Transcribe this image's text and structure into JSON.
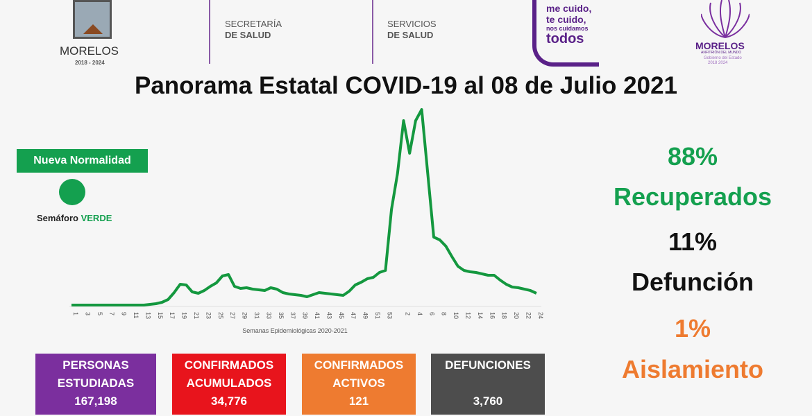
{
  "header": {
    "morelos": "MORELOS",
    "morelos_years": "2018 - 2024",
    "secretaria_1": "SECRETARÍA",
    "secretaria_2": "DE SALUD",
    "servicios_1": "SERVICIOS",
    "servicios_2": "DE SALUD",
    "slogan_1": "me cuido,",
    "slogan_2": "te cuido,",
    "slogan_3": "nos cuidamos",
    "slogan_4": "todos",
    "logo2_title": "MORELOS",
    "logo2_sub": "ANFITRIÓN DEL MUNDO",
    "logo2_gov": "Gobierno del Estado",
    "logo2_years": "2018 2024"
  },
  "title": "Panorama Estatal COVID-19 al 08 de Julio 2021",
  "semaforo": {
    "badge": "Nueva Normalidad",
    "label": "Semáforo",
    "status": "VERDE",
    "color": "#14a04f"
  },
  "stats": {
    "recuperados_pct": "88%",
    "recuperados": "Recuperados",
    "defuncion_pct": "11%",
    "defuncion": "Defunción",
    "aislamiento_pct": "1%",
    "aislamiento": "Aislamiento"
  },
  "boxes": [
    {
      "label1": "PERSONAS",
      "label2": "ESTUDIADAS",
      "value": "167,198",
      "color": "#7b2f9e"
    },
    {
      "label1": "CONFIRMADOS",
      "label2": "ACUMULADOS",
      "value": "34,776",
      "color": "#e8141c"
    },
    {
      "label1": "CONFIRMADOS",
      "label2": "ACTIVOS",
      "value": "121",
      "color": "#ee7b30"
    },
    {
      "label1": "DEFUNCIONES",
      "label2": "",
      "value": "3,760",
      "color": "#4d4d4d"
    }
  ],
  "chart_data": {
    "type": "line",
    "xlabel": "Semanas Epidemiológicas 2020-2021",
    "ylabel": "",
    "grid": false,
    "line_color": "#14983f",
    "tick_labels": [
      "1",
      "3",
      "5",
      "7",
      "9",
      "11",
      "13",
      "15",
      "17",
      "19",
      "21",
      "23",
      "25",
      "27",
      "29",
      "31",
      "33",
      "35",
      "37",
      "39",
      "41",
      "43",
      "45",
      "47",
      "49",
      "51",
      "53",
      "2",
      "4",
      "6",
      "8",
      "10",
      "12",
      "14",
      "16",
      "18",
      "20",
      "22",
      "24"
    ],
    "x": [
      "1",
      "2",
      "3",
      "4",
      "5",
      "6",
      "7",
      "8",
      "9",
      "10",
      "11",
      "12",
      "13",
      "14",
      "15",
      "16",
      "17",
      "18",
      "19",
      "20",
      "21",
      "22",
      "23",
      "24",
      "25",
      "26",
      "27",
      "28",
      "29",
      "30",
      "31",
      "32",
      "33",
      "34",
      "35",
      "36",
      "37",
      "38",
      "39",
      "40",
      "41",
      "42",
      "43",
      "44",
      "45",
      "46",
      "47",
      "48",
      "49",
      "50",
      "51",
      "52",
      "53",
      "1",
      "2",
      "3",
      "4",
      "5",
      "6",
      "7",
      "8",
      "9",
      "10",
      "11",
      "12",
      "13",
      "14",
      "15",
      "16",
      "17",
      "18",
      "19",
      "20",
      "21",
      "22",
      "23",
      "24",
      "25"
    ],
    "values": [
      0,
      0,
      0,
      0,
      0,
      0,
      0,
      0,
      0,
      0,
      0,
      0,
      0,
      1,
      2,
      4,
      8,
      18,
      30,
      29,
      19,
      17,
      21,
      27,
      32,
      42,
      44,
      27,
      24,
      25,
      23,
      22,
      21,
      25,
      23,
      18,
      16,
      15,
      14,
      12,
      15,
      18,
      17,
      16,
      15,
      14,
      20,
      29,
      33,
      38,
      40,
      47,
      50,
      138,
      190,
      266,
      219,
      266,
      282,
      190,
      98,
      94,
      85,
      70,
      56,
      50,
      48,
      47,
      45,
      43,
      43,
      36,
      30,
      26,
      25,
      23,
      21,
      17
    ]
  }
}
